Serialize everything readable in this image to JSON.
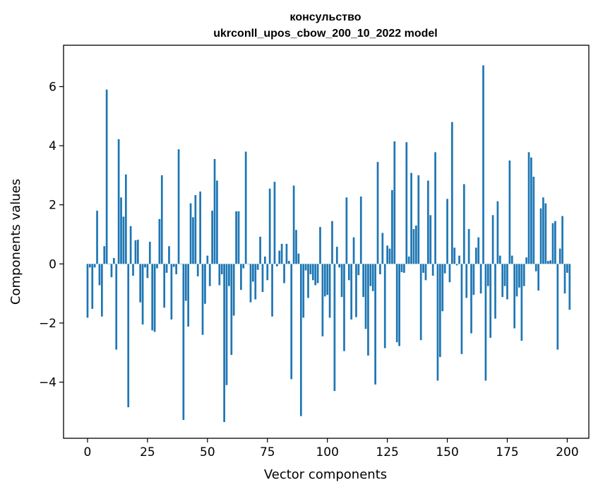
{
  "chart_data": {
    "type": "bar",
    "title": "консульство",
    "subtitle": "ukrconll_upos_cbow_200_10_2022 model",
    "xlabel": "Vector components",
    "ylabel": "Components values",
    "xlim": [
      -10,
      209
    ],
    "ylim": [
      -5.9,
      7.4
    ],
    "xticks": [
      0,
      25,
      50,
      75,
      100,
      125,
      150,
      175,
      200
    ],
    "yticks": [
      -4,
      -2,
      0,
      2,
      4,
      6
    ],
    "bar_color": "#1f77b4",
    "grid": false,
    "x_start": 0,
    "values": [
      -1.82,
      -0.12,
      -1.52,
      -0.12,
      1.8,
      -0.72,
      -1.78,
      0.6,
      5.9,
      0.0,
      -0.45,
      0.2,
      -2.9,
      4.22,
      2.25,
      1.6,
      3.03,
      -4.85,
      1.28,
      -0.4,
      0.8,
      0.82,
      -1.3,
      -2.05,
      -0.12,
      -0.48,
      0.75,
      -2.25,
      -2.3,
      -0.15,
      1.52,
      3.0,
      -1.48,
      -0.3,
      0.6,
      -1.88,
      -0.1,
      -0.35,
      3.88,
      0.0,
      -5.28,
      -1.25,
      -2.12,
      2.05,
      1.58,
      2.33,
      -0.42,
      2.45,
      -2.4,
      -1.35,
      0.28,
      -0.75,
      1.8,
      3.55,
      2.82,
      -0.72,
      -0.35,
      -5.35,
      -4.1,
      -0.75,
      -3.08,
      -1.75,
      1.78,
      1.78,
      -0.88,
      -0.15,
      3.8,
      0.0,
      -1.3,
      -0.6,
      -1.2,
      -0.2,
      0.92,
      -0.95,
      0.25,
      -0.55,
      2.55,
      -1.78,
      2.78,
      -0.08,
      0.45,
      0.68,
      -0.65,
      0.68,
      0.1,
      -3.9,
      2.65,
      1.15,
      0.35,
      -5.15,
      -1.82,
      -0.22,
      -1.15,
      -0.35,
      -0.55,
      -0.72,
      -0.65,
      1.25,
      -2.45,
      -1.1,
      -1.05,
      -1.82,
      1.45,
      -4.3,
      0.58,
      -0.12,
      -1.12,
      -2.95,
      2.25,
      -0.55,
      -1.88,
      0.9,
      -1.8,
      -0.38,
      2.28,
      -1.12,
      -2.2,
      -3.1,
      -0.75,
      -0.92,
      -4.08,
      3.45,
      -0.35,
      1.05,
      -2.85,
      0.62,
      0.52,
      2.5,
      4.15,
      -2.65,
      -2.78,
      -0.28,
      -0.3,
      4.12,
      0.25,
      3.08,
      1.18,
      1.3,
      3.0,
      -2.58,
      -0.3,
      -0.55,
      2.82,
      1.65,
      -0.4,
      3.78,
      -3.95,
      -3.15,
      -1.6,
      -0.32,
      2.2,
      -0.62,
      4.8,
      0.55,
      -0.05,
      0.28,
      -3.05,
      2.7,
      -1.15,
      1.18,
      -2.35,
      -1.05,
      0.55,
      0.9,
      -1.0,
      6.72,
      -3.95,
      -0.75,
      -2.5,
      1.65,
      -1.85,
      2.12,
      0.28,
      -1.12,
      -0.75,
      -1.2,
      3.5,
      0.28,
      -2.18,
      -1.1,
      -0.8,
      -2.6,
      -0.75,
      0.22,
      3.78,
      3.6,
      2.95,
      -0.25,
      -0.9,
      1.88,
      2.25,
      2.05,
      0.1,
      0.12,
      1.38,
      1.45,
      -2.9,
      0.52,
      1.62,
      -1.0,
      -0.3,
      -1.55
    ]
  }
}
